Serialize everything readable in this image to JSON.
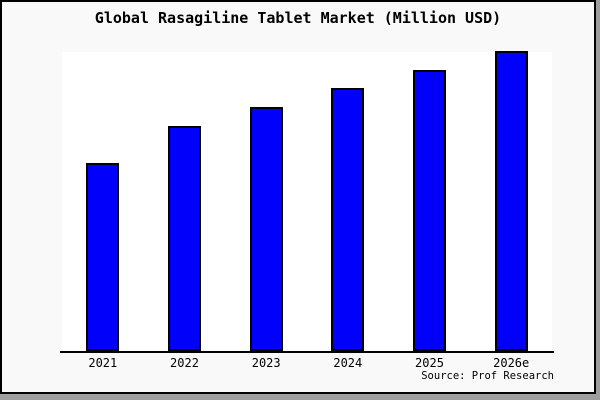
{
  "window": {
    "background": "#f9f9f9",
    "frame_border_color": "#000000",
    "frame_shadow_color": "#9e9e9e"
  },
  "chart_data": {
    "type": "bar",
    "title": "Global Rasagiline Tablet Market (Million USD)",
    "categories": [
      "2021",
      "2022",
      "2023",
      "2024",
      "2025",
      "2026e"
    ],
    "values": [
      62.7,
      75.0,
      81.3,
      87.7,
      93.7,
      100.0
    ],
    "value_note": "y-axis has no ticks or labels; values estimated relative to tallest bar (2026e = 100)",
    "xlabel": "",
    "ylabel": "",
    "ylim": [
      0,
      100
    ],
    "grid": false,
    "legend": false,
    "bar_color": "#0000fb",
    "bar_edge_color": "#000000",
    "plot_background": "#ffffff",
    "source": "Source: Prof Research"
  }
}
